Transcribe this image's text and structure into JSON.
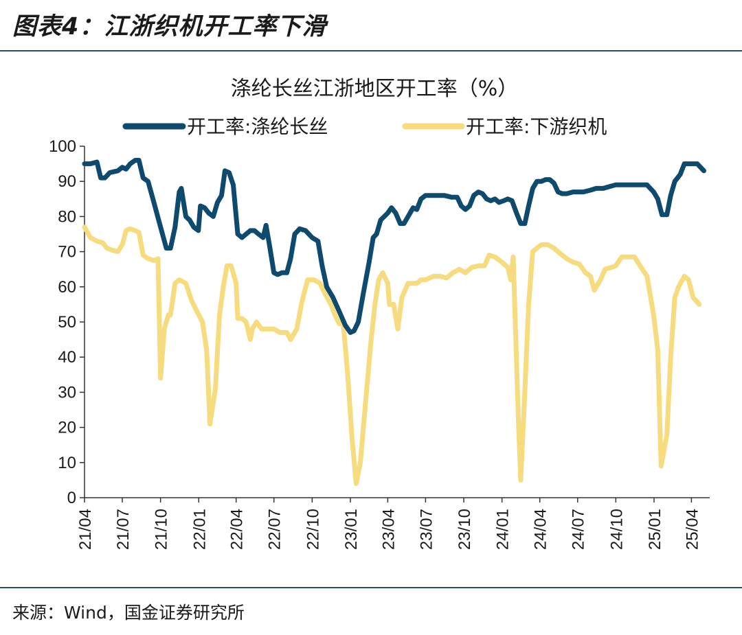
{
  "figure": {
    "title": "图表4：江浙织机开工率下滑",
    "source": "来源：Wind，国金证券研究所"
  },
  "chart_data": {
    "type": "line",
    "title": "涤纶长丝江浙地区开工率（%）",
    "xlabel": "",
    "ylabel": "",
    "ylim": [
      0,
      100
    ],
    "yticks": [
      0,
      10,
      20,
      30,
      40,
      50,
      60,
      70,
      80,
      90,
      100
    ],
    "xlim": [
      "2021-04-01",
      "2025-05-15"
    ],
    "x_tick_dates": [
      "2021-04-01",
      "2021-07-01",
      "2021-10-01",
      "2022-01-01",
      "2022-04-01",
      "2022-07-01",
      "2022-10-01",
      "2023-01-01",
      "2023-04-01",
      "2023-07-01",
      "2023-10-01",
      "2024-01-01",
      "2024-04-01",
      "2024-07-01",
      "2024-10-01",
      "2025-01-01",
      "2025-04-01"
    ],
    "x_tick_labels": [
      "21/04",
      "21/07",
      "21/10",
      "22/01",
      "22/04",
      "22/07",
      "22/10",
      "23/01",
      "23/04",
      "23/07",
      "23/10",
      "24/01",
      "24/04",
      "24/07",
      "24/10",
      "25/01",
      "25/04"
    ],
    "grid": false,
    "legend_position": "top",
    "series": [
      {
        "name": "开工率:涤纶长丝",
        "color": "#0e4a6e",
        "points": [
          [
            "2021-04-01",
            95
          ],
          [
            "2021-04-15",
            95
          ],
          [
            "2021-05-01",
            95.5
          ],
          [
            "2021-05-10",
            91
          ],
          [
            "2021-05-20",
            91
          ],
          [
            "2021-06-01",
            92.5
          ],
          [
            "2021-06-20",
            93
          ],
          [
            "2021-07-01",
            94
          ],
          [
            "2021-07-10",
            93.5
          ],
          [
            "2021-07-20",
            95
          ],
          [
            "2021-08-01",
            96
          ],
          [
            "2021-08-10",
            96
          ],
          [
            "2021-08-20",
            91
          ],
          [
            "2021-09-01",
            90
          ],
          [
            "2021-09-15",
            84
          ],
          [
            "2021-10-01",
            77
          ],
          [
            "2021-10-15",
            71
          ],
          [
            "2021-10-25",
            71
          ],
          [
            "2021-11-05",
            77
          ],
          [
            "2021-11-15",
            87
          ],
          [
            "2021-11-20",
            88
          ],
          [
            "2021-12-01",
            80
          ],
          [
            "2021-12-10",
            79
          ],
          [
            "2021-12-20",
            77
          ],
          [
            "2021-12-31",
            76
          ],
          [
            "2022-01-05",
            83
          ],
          [
            "2022-01-15",
            82.5
          ],
          [
            "2022-01-25",
            81
          ],
          [
            "2022-02-05",
            80
          ],
          [
            "2022-02-15",
            84
          ],
          [
            "2022-02-25",
            86
          ],
          [
            "2022-03-05",
            93
          ],
          [
            "2022-03-15",
            92.5
          ],
          [
            "2022-03-25",
            89
          ],
          [
            "2022-04-05",
            75
          ],
          [
            "2022-04-15",
            74
          ],
          [
            "2022-04-25",
            75
          ],
          [
            "2022-05-05",
            76
          ],
          [
            "2022-05-15",
            76
          ],
          [
            "2022-05-25",
            75
          ],
          [
            "2022-06-05",
            74
          ],
          [
            "2022-06-12",
            77.5
          ],
          [
            "2022-06-20",
            72
          ],
          [
            "2022-07-01",
            64
          ],
          [
            "2022-07-10",
            63.5
          ],
          [
            "2022-07-20",
            64
          ],
          [
            "2022-08-01",
            64
          ],
          [
            "2022-08-10",
            68
          ],
          [
            "2022-08-20",
            75
          ],
          [
            "2022-09-01",
            76.5
          ],
          [
            "2022-09-15",
            76
          ],
          [
            "2022-10-01",
            74
          ],
          [
            "2022-10-15",
            73
          ],
          [
            "2022-10-25",
            66
          ],
          [
            "2022-11-05",
            60
          ],
          [
            "2022-11-20",
            57
          ],
          [
            "2022-12-05",
            53
          ],
          [
            "2022-12-20",
            49
          ],
          [
            "2023-01-01",
            47
          ],
          [
            "2023-01-10",
            47.5
          ],
          [
            "2023-01-20",
            50
          ],
          [
            "2023-02-01",
            58
          ],
          [
            "2023-02-15",
            67
          ],
          [
            "2023-02-25",
            74
          ],
          [
            "2023-03-05",
            75
          ],
          [
            "2023-03-15",
            79
          ],
          [
            "2023-04-01",
            81
          ],
          [
            "2023-04-10",
            82.5
          ],
          [
            "2023-04-20",
            81
          ],
          [
            "2023-05-01",
            78
          ],
          [
            "2023-05-10",
            78
          ],
          [
            "2023-05-20",
            80
          ],
          [
            "2023-06-01",
            82.5
          ],
          [
            "2023-06-10",
            82
          ],
          [
            "2023-06-20",
            85
          ],
          [
            "2023-07-01",
            86
          ],
          [
            "2023-07-15",
            86
          ],
          [
            "2023-08-01",
            86
          ],
          [
            "2023-08-15",
            86
          ],
          [
            "2023-09-01",
            85.5
          ],
          [
            "2023-09-15",
            85.5
          ],
          [
            "2023-09-25",
            83
          ],
          [
            "2023-10-05",
            82
          ],
          [
            "2023-10-15",
            83
          ],
          [
            "2023-10-25",
            86
          ],
          [
            "2023-11-05",
            87
          ],
          [
            "2023-11-15",
            86.5
          ],
          [
            "2023-11-25",
            85
          ],
          [
            "2023-12-05",
            84.5
          ],
          [
            "2023-12-15",
            85
          ],
          [
            "2023-12-25",
            84
          ],
          [
            "2024-01-05",
            84.5
          ],
          [
            "2024-01-15",
            85
          ],
          [
            "2024-01-25",
            84.5
          ],
          [
            "2024-02-05",
            81
          ],
          [
            "2024-02-15",
            78
          ],
          [
            "2024-02-25",
            78
          ],
          [
            "2024-03-05",
            83
          ],
          [
            "2024-03-15",
            88
          ],
          [
            "2024-03-25",
            90
          ],
          [
            "2024-04-05",
            90
          ],
          [
            "2024-04-15",
            90.5
          ],
          [
            "2024-04-25",
            90.5
          ],
          [
            "2024-05-05",
            89.5
          ],
          [
            "2024-05-15",
            87
          ],
          [
            "2024-05-25",
            86.5
          ],
          [
            "2024-06-05",
            86.5
          ],
          [
            "2024-06-20",
            87
          ],
          [
            "2024-07-01",
            87
          ],
          [
            "2024-07-15",
            87
          ],
          [
            "2024-08-01",
            87.5
          ],
          [
            "2024-08-15",
            88
          ],
          [
            "2024-09-01",
            88
          ],
          [
            "2024-09-15",
            88.5
          ],
          [
            "2024-10-01",
            89
          ],
          [
            "2024-10-15",
            89
          ],
          [
            "2024-11-01",
            89
          ],
          [
            "2024-11-15",
            89
          ],
          [
            "2024-12-01",
            89
          ],
          [
            "2024-12-15",
            89
          ],
          [
            "2024-12-31",
            87
          ],
          [
            "2025-01-10",
            85
          ],
          [
            "2025-01-20",
            80.5
          ],
          [
            "2025-02-01",
            80.5
          ],
          [
            "2025-02-10",
            86
          ],
          [
            "2025-02-20",
            90
          ],
          [
            "2025-03-05",
            92
          ],
          [
            "2025-03-15",
            95
          ],
          [
            "2025-04-01",
            95
          ],
          [
            "2025-04-15",
            95
          ],
          [
            "2025-05-01",
            93
          ]
        ]
      },
      {
        "name": "开工率:下游织机",
        "color": "#f6dc7e",
        "points": [
          [
            "2021-04-01",
            77
          ],
          [
            "2021-04-15",
            74
          ],
          [
            "2021-05-01",
            73
          ],
          [
            "2021-05-15",
            72.5
          ],
          [
            "2021-05-25",
            71
          ],
          [
            "2021-06-05",
            70.5
          ],
          [
            "2021-06-20",
            70
          ],
          [
            "2021-07-01",
            72
          ],
          [
            "2021-07-10",
            76
          ],
          [
            "2021-07-20",
            76.5
          ],
          [
            "2021-08-01",
            76
          ],
          [
            "2021-08-10",
            75.5
          ],
          [
            "2021-08-20",
            69
          ],
          [
            "2021-09-01",
            68
          ],
          [
            "2021-09-15",
            67.5
          ],
          [
            "2021-09-25",
            68
          ],
          [
            "2021-10-01",
            34
          ],
          [
            "2021-10-10",
            48
          ],
          [
            "2021-10-20",
            52
          ],
          [
            "2021-10-25",
            52
          ],
          [
            "2021-11-05",
            61
          ],
          [
            "2021-11-15",
            62
          ],
          [
            "2021-12-01",
            61
          ],
          [
            "2021-12-15",
            56
          ],
          [
            "2022-01-01",
            52
          ],
          [
            "2022-01-10",
            50
          ],
          [
            "2022-01-20",
            42
          ],
          [
            "2022-01-28",
            21
          ],
          [
            "2022-02-10",
            31
          ],
          [
            "2022-02-20",
            52
          ],
          [
            "2022-03-01",
            60
          ],
          [
            "2022-03-10",
            66
          ],
          [
            "2022-03-20",
            66
          ],
          [
            "2022-04-01",
            61
          ],
          [
            "2022-04-05",
            51
          ],
          [
            "2022-04-15",
            51
          ],
          [
            "2022-04-25",
            50
          ],
          [
            "2022-05-05",
            45
          ],
          [
            "2022-05-10",
            48
          ],
          [
            "2022-05-20",
            50
          ],
          [
            "2022-06-01",
            48
          ],
          [
            "2022-06-15",
            48
          ],
          [
            "2022-07-01",
            48
          ],
          [
            "2022-07-15",
            47
          ],
          [
            "2022-08-01",
            47
          ],
          [
            "2022-08-10",
            45
          ],
          [
            "2022-08-25",
            48
          ],
          [
            "2022-09-05",
            55
          ],
          [
            "2022-09-20",
            62
          ],
          [
            "2022-10-05",
            62
          ],
          [
            "2022-10-20",
            61
          ],
          [
            "2022-11-01",
            58
          ],
          [
            "2022-11-15",
            55
          ],
          [
            "2022-11-25",
            52
          ],
          [
            "2022-12-05",
            49.5
          ],
          [
            "2022-12-15",
            49.5
          ],
          [
            "2022-12-25",
            36
          ],
          [
            "2023-01-05",
            17
          ],
          [
            "2023-01-15",
            4
          ],
          [
            "2023-01-25",
            10
          ],
          [
            "2023-02-05",
            25
          ],
          [
            "2023-02-20",
            45
          ],
          [
            "2023-03-01",
            55
          ],
          [
            "2023-03-10",
            62
          ],
          [
            "2023-03-20",
            64
          ],
          [
            "2023-04-01",
            61
          ],
          [
            "2023-04-05",
            55
          ],
          [
            "2023-04-15",
            55
          ],
          [
            "2023-04-25",
            48
          ],
          [
            "2023-05-05",
            57
          ],
          [
            "2023-05-20",
            61
          ],
          [
            "2023-06-10",
            61
          ],
          [
            "2023-06-20",
            62
          ],
          [
            "2023-07-01",
            62
          ],
          [
            "2023-07-20",
            63
          ],
          [
            "2023-08-05",
            63
          ],
          [
            "2023-08-20",
            62.5
          ],
          [
            "2023-09-05",
            64
          ],
          [
            "2023-09-20",
            65
          ],
          [
            "2023-10-05",
            64
          ],
          [
            "2023-10-20",
            65.5
          ],
          [
            "2023-11-05",
            66
          ],
          [
            "2023-11-20",
            66
          ],
          [
            "2023-12-01",
            69
          ],
          [
            "2023-12-15",
            68.5
          ],
          [
            "2024-01-01",
            67
          ],
          [
            "2024-01-15",
            65.5
          ],
          [
            "2024-01-22",
            62
          ],
          [
            "2024-01-28",
            68.5
          ],
          [
            "2024-02-10",
            20
          ],
          [
            "2024-02-15",
            5
          ],
          [
            "2024-02-25",
            30
          ],
          [
            "2024-03-05",
            55
          ],
          [
            "2024-03-15",
            70
          ],
          [
            "2024-03-25",
            71
          ],
          [
            "2024-04-05",
            72
          ],
          [
            "2024-04-20",
            72
          ],
          [
            "2024-05-05",
            71
          ],
          [
            "2024-05-20",
            69.5
          ],
          [
            "2024-06-05",
            68
          ],
          [
            "2024-06-20",
            67
          ],
          [
            "2024-07-05",
            66.5
          ],
          [
            "2024-07-20",
            64
          ],
          [
            "2024-08-01",
            63
          ],
          [
            "2024-08-10",
            59
          ],
          [
            "2024-08-25",
            62
          ],
          [
            "2024-09-05",
            65
          ],
          [
            "2024-09-20",
            65.5
          ],
          [
            "2024-10-01",
            66
          ],
          [
            "2024-10-15",
            68.5
          ],
          [
            "2024-11-01",
            68.5
          ],
          [
            "2024-11-15",
            68.5
          ],
          [
            "2024-12-01",
            65.5
          ],
          [
            "2024-12-15",
            63
          ],
          [
            "2024-12-31",
            52
          ],
          [
            "2025-01-10",
            42
          ],
          [
            "2025-01-18",
            9
          ],
          [
            "2025-02-01",
            18
          ],
          [
            "2025-02-10",
            40
          ],
          [
            "2025-02-20",
            57
          ],
          [
            "2025-03-01",
            60
          ],
          [
            "2025-03-15",
            63
          ],
          [
            "2025-03-25",
            62
          ],
          [
            "2025-04-05",
            57
          ],
          [
            "2025-04-20",
            55
          ]
        ]
      }
    ]
  }
}
